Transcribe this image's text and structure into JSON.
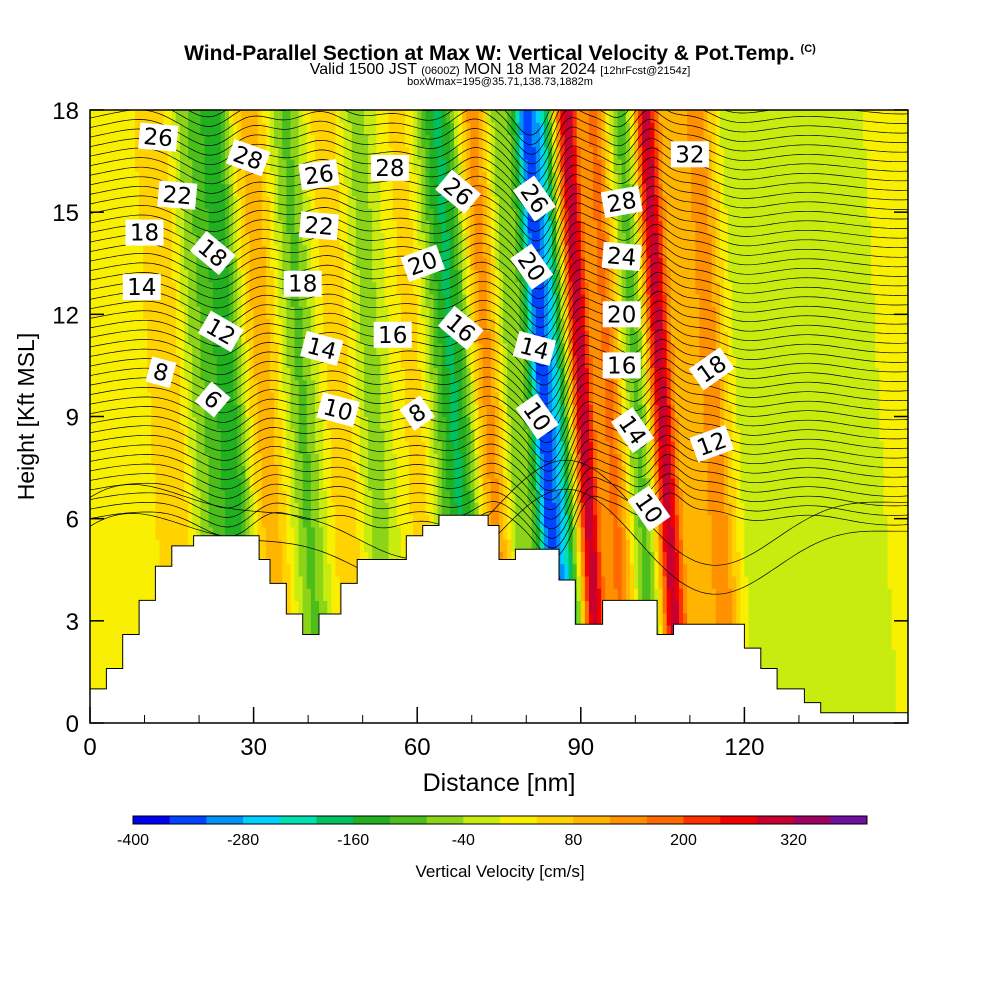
{
  "header": {
    "title": "Wind-Parallel Section at Max W: Vertical Velocity & Pot.Temp.",
    "title_tag": "(C)",
    "subtitle_a": "Valid 1500 JST",
    "subtitle_b": "(0600Z)",
    "subtitle_c": "MON 18 Mar 2024",
    "subtitle_d": "[12hrFcst@2154z]",
    "subline": "boxWmax=195@35.71,138.73,1882m"
  },
  "chart_data": {
    "type": "heatmap",
    "xlabel": "Distance [nm]",
    "ylabel": "Height [Kft MSL]",
    "xlim": [
      0,
      150
    ],
    "ylim": [
      0,
      18
    ],
    "x_ticks": [
      0,
      30,
      60,
      90,
      120
    ],
    "y_ticks": [
      0,
      3,
      6,
      9,
      12,
      15,
      18
    ],
    "terrain_kft": [
      [
        0,
        1.0
      ],
      [
        3,
        1.6
      ],
      [
        6,
        2.6
      ],
      [
        9,
        3.6
      ],
      [
        12,
        4.6
      ],
      [
        15,
        5.2
      ],
      [
        19,
        5.5
      ],
      [
        29,
        5.5
      ],
      [
        31,
        4.8
      ],
      [
        33,
        4.1
      ],
      [
        36,
        3.2
      ],
      [
        39,
        2.6
      ],
      [
        42,
        3.2
      ],
      [
        46,
        4.1
      ],
      [
        49,
        4.8
      ],
      [
        58,
        5.5
      ],
      [
        61,
        5.8
      ],
      [
        64,
        6.1
      ],
      [
        70,
        6.1
      ],
      [
        73,
        5.8
      ],
      [
        75,
        4.8
      ],
      [
        78,
        5.1
      ],
      [
        83,
        5.1
      ],
      [
        86,
        4.2
      ],
      [
        89,
        2.9
      ],
      [
        94,
        3.6
      ],
      [
        102,
        3.6
      ],
      [
        104,
        2.6
      ],
      [
        107,
        2.9
      ],
      [
        116,
        2.9
      ],
      [
        120,
        2.2
      ],
      [
        123,
        1.6
      ],
      [
        126,
        1.0
      ],
      [
        131,
        0.6
      ],
      [
        134,
        0.3
      ],
      [
        150,
        0.3
      ]
    ],
    "velocity_features": [
      {
        "x": 16,
        "w": 4,
        "value": 70
      },
      {
        "x": 22,
        "w": 4,
        "value": -90
      },
      {
        "x": 27,
        "w": 3,
        "value": -140
      },
      {
        "x": 33,
        "w": 3.5,
        "value": 90
      },
      {
        "x": 40,
        "w": 3,
        "value": -100
      },
      {
        "x": 47,
        "w": 3,
        "value": 60
      },
      {
        "x": 53,
        "w": 3,
        "value": -70
      },
      {
        "x": 61,
        "w": 3,
        "value": 50
      },
      {
        "x": 68,
        "w": 4,
        "value": -180
      },
      {
        "x": 74,
        "w": 3,
        "value": 140
      },
      {
        "x": 79,
        "w": 2.5,
        "value": -90
      },
      {
        "x": 84,
        "w": 2.2,
        "value": -330
      },
      {
        "x": 87,
        "w": 2,
        "value": -200
      },
      {
        "x": 91.5,
        "w": 2,
        "value": 300
      },
      {
        "x": 96.5,
        "w": 2.5,
        "value": 160
      },
      {
        "x": 101.5,
        "w": 2.5,
        "value": -110
      },
      {
        "x": 106,
        "w": 2.2,
        "value": 290
      },
      {
        "x": 110.5,
        "w": 3,
        "value": 60
      },
      {
        "x": 115.5,
        "w": 3,
        "value": 130
      },
      {
        "x": 122,
        "w": 4,
        "value": -40
      },
      {
        "x": 129,
        "w": 4,
        "value": -45
      },
      {
        "x": 140,
        "w": 5,
        "value": -50
      }
    ],
    "contour_labels": [
      {
        "text": "26",
        "x": 12.5,
        "y": 17.2,
        "rot": 5
      },
      {
        "text": "28",
        "x": 29,
        "y": 16.6,
        "rot": 20
      },
      {
        "text": "26",
        "x": 42,
        "y": 16.1,
        "rot": -8
      },
      {
        "text": "28",
        "x": 55,
        "y": 16.3,
        "rot": 0
      },
      {
        "text": "26",
        "x": 67.5,
        "y": 15.6,
        "rot": 40
      },
      {
        "text": "26",
        "x": 81.5,
        "y": 15.4,
        "rot": 55
      },
      {
        "text": "28",
        "x": 97.5,
        "y": 15.3,
        "rot": -10
      },
      {
        "text": "32",
        "x": 110,
        "y": 16.7,
        "rot": 0
      },
      {
        "text": "22",
        "x": 16,
        "y": 15.5,
        "rot": 5
      },
      {
        "text": "22",
        "x": 42,
        "y": 14.6,
        "rot": 5
      },
      {
        "text": "20",
        "x": 61,
        "y": 13.5,
        "rot": -20
      },
      {
        "text": "20",
        "x": 81,
        "y": 13.4,
        "rot": 55
      },
      {
        "text": "24",
        "x": 97.5,
        "y": 13.7,
        "rot": 5
      },
      {
        "text": "18",
        "x": 10,
        "y": 14.4,
        "rot": 0
      },
      {
        "text": "18",
        "x": 22.5,
        "y": 13.8,
        "rot": 40
      },
      {
        "text": "18",
        "x": 39,
        "y": 12.9,
        "rot": 0
      },
      {
        "text": "14",
        "x": 9.5,
        "y": 12.8,
        "rot": 0
      },
      {
        "text": "20",
        "x": 97.5,
        "y": 12.0,
        "rot": 0
      },
      {
        "text": "12",
        "x": 24,
        "y": 11.5,
        "rot": 30
      },
      {
        "text": "14",
        "x": 42.5,
        "y": 11.0,
        "rot": 15
      },
      {
        "text": "16",
        "x": 55.5,
        "y": 11.4,
        "rot": 0
      },
      {
        "text": "16",
        "x": 68,
        "y": 11.6,
        "rot": 40
      },
      {
        "text": "14",
        "x": 81.5,
        "y": 11.0,
        "rot": 15
      },
      {
        "text": "16",
        "x": 97.5,
        "y": 10.5,
        "rot": 0
      },
      {
        "text": "18",
        "x": 114,
        "y": 10.4,
        "rot": -35
      },
      {
        "text": "8",
        "x": 13,
        "y": 10.3,
        "rot": 15
      },
      {
        "text": "6",
        "x": 22.5,
        "y": 9.5,
        "rot": 40
      },
      {
        "text": "10",
        "x": 45.5,
        "y": 9.2,
        "rot": 15
      },
      {
        "text": "8",
        "x": 60,
        "y": 9.1,
        "rot": -35
      },
      {
        "text": "10",
        "x": 82,
        "y": 9.0,
        "rot": 55
      },
      {
        "text": "14",
        "x": 99.5,
        "y": 8.6,
        "rot": 55
      },
      {
        "text": "12",
        "x": 114,
        "y": 8.2,
        "rot": -20
      },
      {
        "text": "10",
        "x": 102.5,
        "y": 6.3,
        "rot": 55
      }
    ],
    "colorbar": {
      "label": "Vertical Velocity [cm/s]",
      "min": -400,
      "max": 400,
      "tick_labels": [
        "-400",
        "-280",
        "-160",
        "-40",
        "80",
        "200",
        "320"
      ],
      "colors": [
        "#0000f0",
        "#0044ff",
        "#0090f8",
        "#00d0ff",
        "#00e0b0",
        "#00c060",
        "#20b020",
        "#4cbe1c",
        "#8cd418",
        "#c8ec10",
        "#f8f000",
        "#ffd200",
        "#ffb400",
        "#ff9000",
        "#ff6a00",
        "#ff3000",
        "#f00000",
        "#c80030",
        "#a00060",
        "#7010a0"
      ]
    }
  }
}
